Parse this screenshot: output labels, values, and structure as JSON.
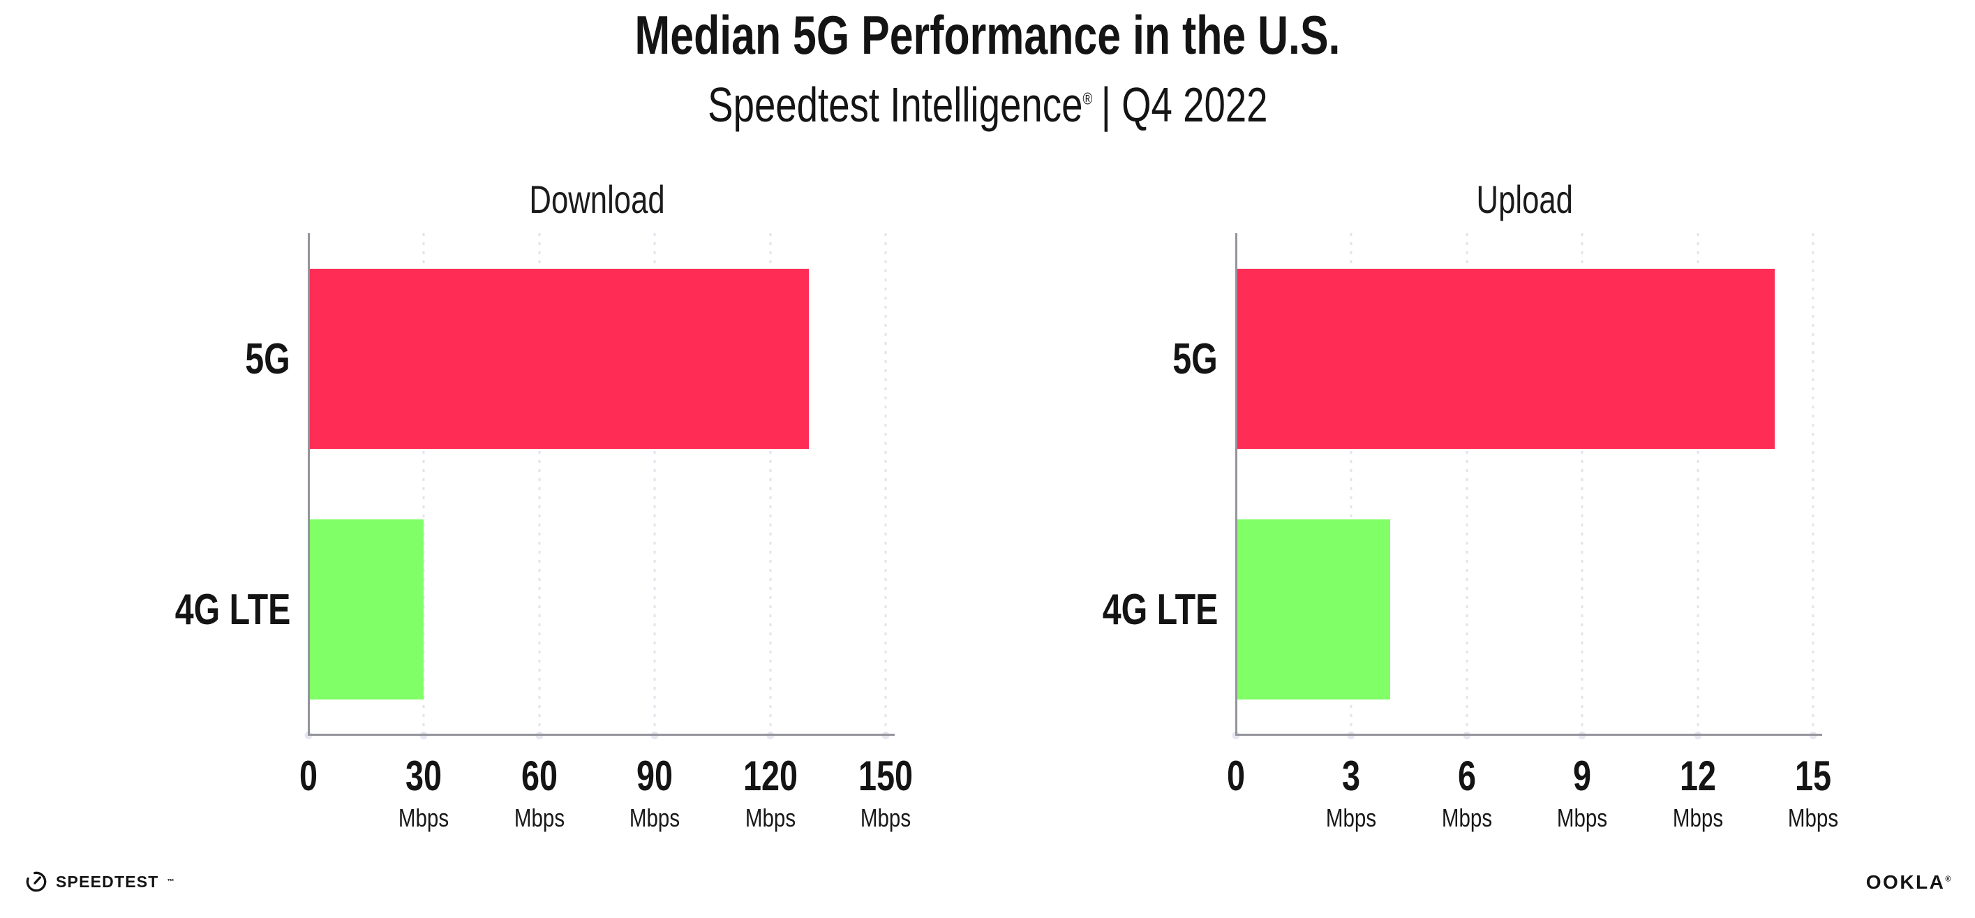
{
  "header": {
    "title": "Median 5G Performance in the U.S.",
    "subtitle_brand": "Speedtest Intelligence",
    "subtitle_reg": "®",
    "subtitle_period": "| Q4 2022"
  },
  "colors": {
    "bar_5g": "#ff2d55",
    "bar_4g": "#80ff66",
    "gridline": "#e3e3ee",
    "axis": "#94949c",
    "text": "#141414"
  },
  "chart_data": [
    {
      "type": "bar",
      "orientation": "horizontal",
      "title": "Download",
      "categories": [
        "5G",
        "4G LTE"
      ],
      "values": [
        130,
        30
      ],
      "unit": "Mbps",
      "xlim": [
        0,
        150
      ],
      "xticks": [
        0,
        30,
        60,
        90,
        120,
        150
      ],
      "grid": "dotted-vertical",
      "legend": "none",
      "bar_colors": [
        "#ff2d55",
        "#80ff66"
      ]
    },
    {
      "type": "bar",
      "orientation": "horizontal",
      "title": "Upload",
      "categories": [
        "5G",
        "4G LTE"
      ],
      "values": [
        14,
        4
      ],
      "unit": "Mbps",
      "xlim": [
        0,
        15
      ],
      "xticks": [
        0,
        3,
        6,
        9,
        12,
        15
      ],
      "grid": "dotted-vertical",
      "legend": "none",
      "bar_colors": [
        "#ff2d55",
        "#80ff66"
      ]
    }
  ],
  "footer": {
    "speedtest_label": "SPEEDTEST",
    "speedtest_tm": "™",
    "ookla_label": "OOKLA",
    "ookla_reg": "®"
  }
}
